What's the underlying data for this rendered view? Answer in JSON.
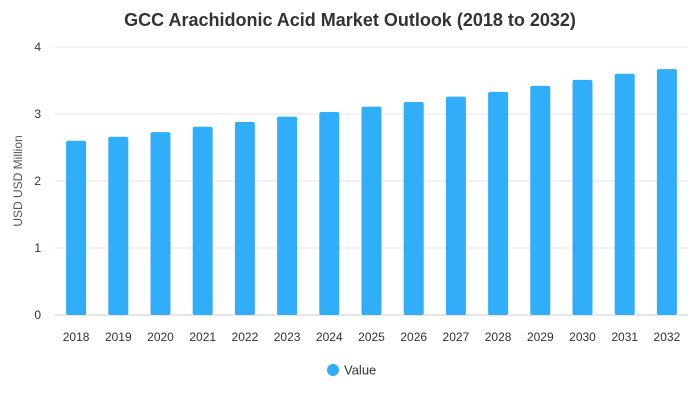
{
  "chart_data": {
    "type": "bar",
    "title": "GCC Arachidonic Acid Market Outlook (2018 to 2032)",
    "ylabel": "USD USD Million",
    "xlabel": "",
    "ylim": [
      0,
      4
    ],
    "yticks": [
      0,
      1,
      2,
      3,
      4
    ],
    "grid": true,
    "legend_position": "bottom",
    "series": [
      {
        "name": "Value",
        "color": "#30aefa",
        "values": [
          2.6,
          2.66,
          2.73,
          2.81,
          2.88,
          2.96,
          3.03,
          3.11,
          3.18,
          3.26,
          3.33,
          3.42,
          3.51,
          3.6,
          3.67
        ]
      }
    ],
    "categories": [
      "2018",
      "2019",
      "2020",
      "2021",
      "2022",
      "2023",
      "2024",
      "2025",
      "2026",
      "2027",
      "2028",
      "2029",
      "2030",
      "2031",
      "2032"
    ]
  }
}
